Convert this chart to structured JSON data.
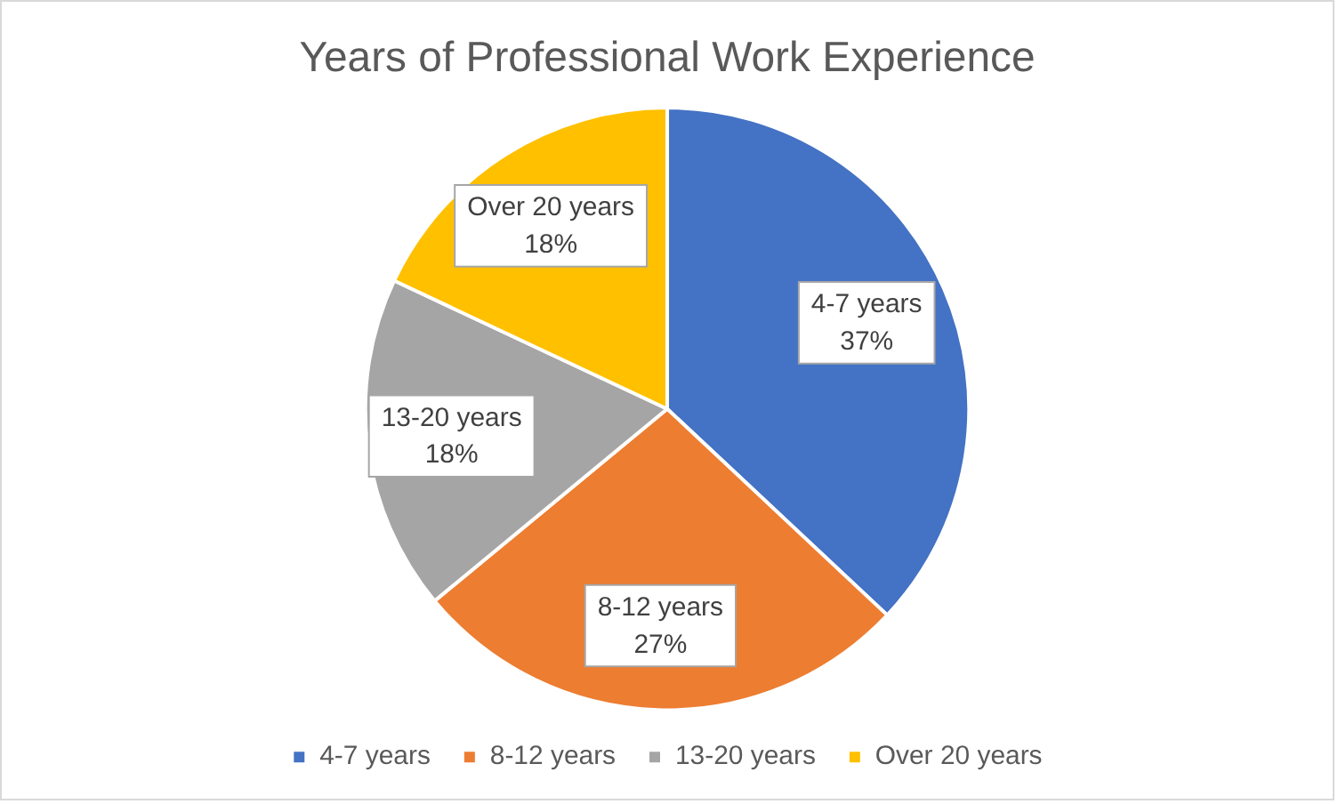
{
  "chart_data": {
    "type": "pie",
    "title": "Years of Professional Work Experience",
    "categories": [
      "4-7 years",
      "8-12 years",
      "13-20 years",
      "Over 20 years"
    ],
    "values": [
      37,
      27,
      18,
      18
    ],
    "colors": [
      "#4472c4",
      "#ed7d31",
      "#a5a5a5",
      "#ffc000"
    ],
    "value_labels": [
      "37%",
      "27%",
      "18%",
      "18%"
    ],
    "legend": "bottom"
  }
}
